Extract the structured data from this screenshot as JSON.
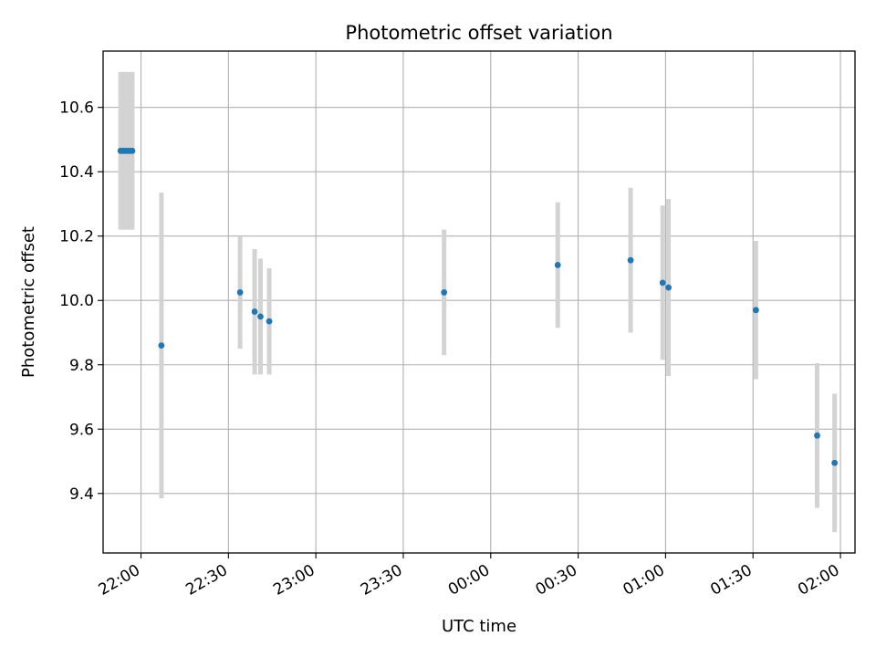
{
  "chart_data": {
    "type": "scatter",
    "title": "Photometric offset variation",
    "xlabel": "UTC time",
    "ylabel": "Photometric offset",
    "x_unit": "UTC time (hh:mm)",
    "xlim": [
      "21:47",
      "02:05"
    ],
    "ylim": [
      9.215,
      10.775
    ],
    "x_tick_labels": [
      "22:00",
      "22:30",
      "23:00",
      "23:30",
      "00:00",
      "00:30",
      "01:00",
      "01:30",
      "02:00"
    ],
    "y_ticks": [
      9.4,
      9.6,
      9.8,
      10.0,
      10.2,
      10.4,
      10.6
    ],
    "y_tick_labels": [
      "9.4",
      "9.6",
      "9.8",
      "10.0",
      "10.2",
      "10.4",
      "10.6"
    ],
    "grid": true,
    "colors": {
      "points": "#1f77b4",
      "errorbars": "#d3d3d3",
      "grid": "#b0b0b0"
    },
    "series": [
      {
        "x": [
          "21:53",
          "21:54",
          "21:54",
          "21:55",
          "21:56",
          "21:57",
          "22:07",
          "22:34",
          "22:39",
          "22:41",
          "22:44",
          "23:44",
          "00:23",
          "00:48",
          "00:59",
          "01:01",
          "01:31",
          "01:52",
          "01:58"
        ],
        "y": [
          10.465,
          10.465,
          10.465,
          10.465,
          10.465,
          10.465,
          9.86,
          10.025,
          9.965,
          9.95,
          9.935,
          10.025,
          10.11,
          10.125,
          10.055,
          10.04,
          9.97,
          9.58,
          9.495
        ],
        "yerr": [
          0.245,
          0.245,
          0.245,
          0.245,
          0.245,
          0.245,
          0.475,
          0.175,
          0.195,
          0.18,
          0.165,
          0.195,
          0.195,
          0.225,
          0.24,
          0.275,
          0.215,
          0.225,
          0.215
        ]
      }
    ]
  }
}
